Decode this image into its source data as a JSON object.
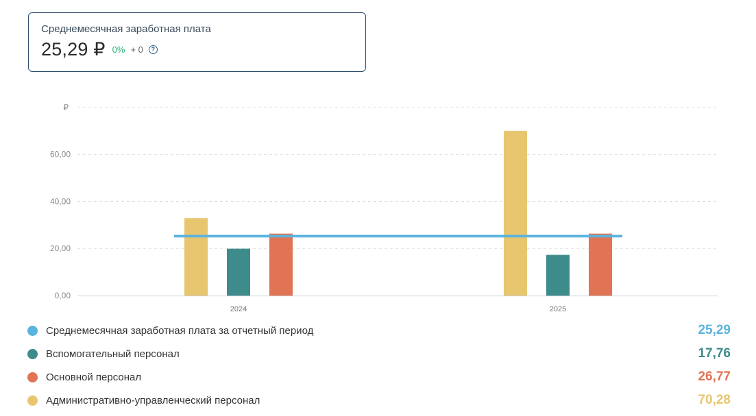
{
  "kpi": {
    "title": "Среднемесячная заработная плата",
    "value": "25,29 ₽",
    "change": "0%",
    "delta": "+ 0",
    "help_symbol": "?"
  },
  "chart_data": {
    "type": "bar",
    "categories": [
      "2024",
      "2025"
    ],
    "y_unit": "₽",
    "ylim": [
      0,
      80
    ],
    "yticks": [
      {
        "value": 0,
        "label": "0,00"
      },
      {
        "value": 20,
        "label": "20,00"
      },
      {
        "value": 40,
        "label": "40,00"
      },
      {
        "value": 60,
        "label": "60,00"
      }
    ],
    "grid": true,
    "series": [
      {
        "name": "Административно-управленческий персонал",
        "color": "#e8c66f",
        "values": [
          32.9,
          70.0
        ]
      },
      {
        "name": "Вспомогательный персонал",
        "color": "#3d8b8a",
        "values": [
          19.9,
          17.3
        ]
      },
      {
        "name": "Основной персонал",
        "color": "#e07454",
        "values": [
          26.3,
          26.3
        ]
      }
    ],
    "reference_line": {
      "name": "Среднемесячная заработная плата за отчетный период",
      "color": "#5bb4dd",
      "value": 25.29
    }
  },
  "legend": [
    {
      "label": "Среднемесячная заработная плата за отчетный период",
      "value": "25,29",
      "color": "#5bb4dd"
    },
    {
      "label": "Вспомогательный персонал",
      "value": "17,76",
      "color": "#3d8b8a"
    },
    {
      "label": "Основной персонал",
      "value": "26,77",
      "color": "#e07454"
    },
    {
      "label": "Административно-управленческий персонал",
      "value": "70,28",
      "color": "#e8c66f"
    }
  ]
}
